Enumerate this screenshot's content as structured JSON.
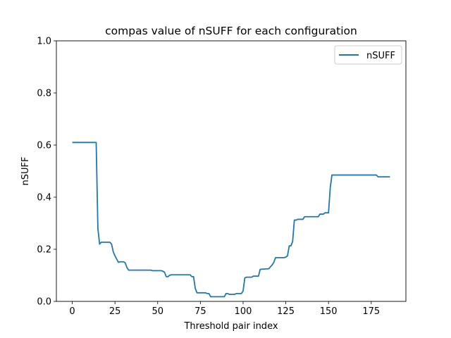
{
  "chart_data": {
    "type": "line",
    "title": "compas value of nSUFF for each configuration",
    "xlabel": "Threshold pair index",
    "ylabel": "nSUFF",
    "xlim": [
      -9.3,
      195.3
    ],
    "ylim": [
      0.0,
      1.0
    ],
    "xticks": [
      0,
      25,
      50,
      75,
      100,
      125,
      150,
      175
    ],
    "yticks": [
      0.0,
      0.2,
      0.4,
      0.6,
      0.8,
      1.0
    ],
    "grid": false,
    "legend_position": "top-right",
    "series": [
      {
        "name": "nSUFF",
        "color": "#1f77b4",
        "x": [
          0,
          14,
          15,
          16,
          17,
          22,
          23,
          24,
          25,
          27,
          28,
          30,
          31,
          32,
          33,
          46,
          47,
          52,
          53,
          54,
          55,
          56,
          57,
          58,
          69,
          70,
          71,
          72,
          73,
          78,
          79,
          80,
          81,
          89,
          90,
          91,
          92,
          95,
          96,
          99,
          100,
          101,
          102,
          105,
          106,
          109,
          110,
          114,
          115,
          117,
          118,
          119,
          124,
          125,
          126,
          127,
          128,
          129,
          130,
          131,
          132,
          135,
          136,
          137,
          144,
          145,
          147,
          148,
          150,
          151,
          152,
          178,
          179,
          186
        ],
        "y": [
          0.61,
          0.61,
          0.28,
          0.22,
          0.227,
          0.227,
          0.22,
          0.19,
          0.175,
          0.15,
          0.152,
          0.152,
          0.148,
          0.13,
          0.12,
          0.12,
          0.118,
          0.118,
          0.116,
          0.112,
          0.095,
          0.095,
          0.1,
          0.102,
          0.102,
          0.095,
          0.095,
          0.05,
          0.033,
          0.033,
          0.03,
          0.03,
          0.018,
          0.018,
          0.03,
          0.03,
          0.027,
          0.027,
          0.03,
          0.03,
          0.04,
          0.09,
          0.093,
          0.093,
          0.097,
          0.097,
          0.123,
          0.125,
          0.125,
          0.14,
          0.15,
          0.168,
          0.168,
          0.17,
          0.175,
          0.213,
          0.213,
          0.23,
          0.312,
          0.312,
          0.315,
          0.315,
          0.325,
          0.325,
          0.325,
          0.335,
          0.335,
          0.34,
          0.34,
          0.435,
          0.485,
          0.485,
          0.478,
          0.478
        ]
      }
    ]
  }
}
